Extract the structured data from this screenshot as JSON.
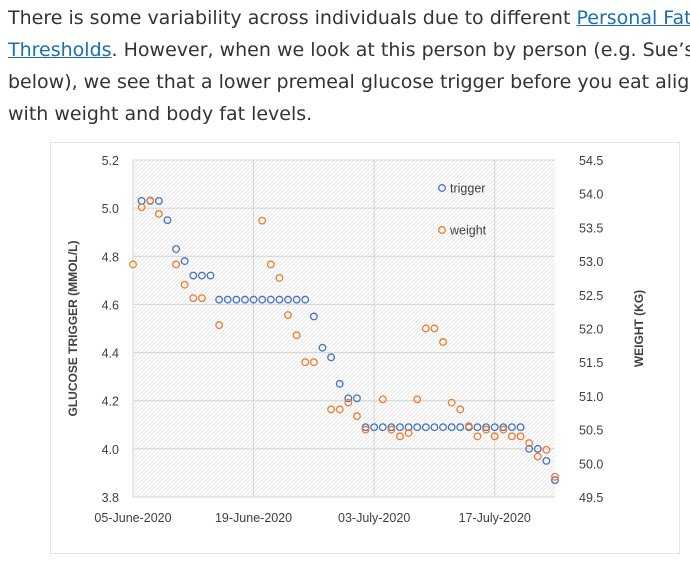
{
  "article": {
    "line1_pre": "There is some variability across individuals due to different ",
    "link_text": "Personal Fat",
    "line2_link": "Thresholds",
    "line2_post": ".  However, when we look at this person by person (e.g. Sue’s data",
    "line3": "below), we see that a lower premeal glucose trigger before you eat aligns nicely",
    "line4": "with weight and body fat levels."
  },
  "colors": {
    "trigger": "#4472c4",
    "weight": "#ed7d31",
    "text": "#333333",
    "link": "#1a6fb0"
  },
  "chart_data": {
    "type": "scatter",
    "title": "",
    "xlabel": "",
    "ylabel": "GLUCOSE TRIGGER (MMOL/L)",
    "y2label": "WEIGHT (KG)",
    "ylim": [
      3.8,
      5.2
    ],
    "y2lim": [
      49.5,
      54.5
    ],
    "yticks": [
      "5.2",
      "5.0",
      "4.8",
      "4.6",
      "4.4",
      "4.2",
      "4.0",
      "3.8"
    ],
    "y2ticks": [
      "54.5",
      "54.0",
      "53.5",
      "53.0",
      "52.5",
      "52.0",
      "51.5",
      "51.0",
      "50.5",
      "50.0",
      "49.5"
    ],
    "xlim": [
      "2020-06-05",
      "2020-07-24"
    ],
    "xticks": [
      "05-June-2020",
      "19-June-2020",
      "03-July-2020",
      "17-July-2020"
    ],
    "legend_position": "top-right",
    "grid": true,
    "series": [
      {
        "name": "trigger",
        "axis": "left",
        "points": [
          [
            "2020-06-06",
            5.03
          ],
          [
            "2020-06-07",
            5.03
          ],
          [
            "2020-06-08",
            5.03
          ],
          [
            "2020-06-09",
            4.95
          ],
          [
            "2020-06-10",
            4.83
          ],
          [
            "2020-06-11",
            4.78
          ],
          [
            "2020-06-12",
            4.72
          ],
          [
            "2020-06-13",
            4.72
          ],
          [
            "2020-06-14",
            4.72
          ],
          [
            "2020-06-15",
            4.62
          ],
          [
            "2020-06-16",
            4.62
          ],
          [
            "2020-06-17",
            4.62
          ],
          [
            "2020-06-18",
            4.62
          ],
          [
            "2020-06-19",
            4.62
          ],
          [
            "2020-06-20",
            4.62
          ],
          [
            "2020-06-21",
            4.62
          ],
          [
            "2020-06-22",
            4.62
          ],
          [
            "2020-06-23",
            4.62
          ],
          [
            "2020-06-24",
            4.62
          ],
          [
            "2020-06-25",
            4.62
          ],
          [
            "2020-06-26",
            4.55
          ],
          [
            "2020-06-27",
            4.42
          ],
          [
            "2020-06-28",
            4.38
          ],
          [
            "2020-06-29",
            4.27
          ],
          [
            "2020-06-30",
            4.21
          ],
          [
            "2020-07-01",
            4.21
          ],
          [
            "2020-07-02",
            4.09
          ],
          [
            "2020-07-03",
            4.09
          ],
          [
            "2020-07-04",
            4.09
          ],
          [
            "2020-07-05",
            4.09
          ],
          [
            "2020-07-06",
            4.09
          ],
          [
            "2020-07-07",
            4.09
          ],
          [
            "2020-07-08",
            4.09
          ],
          [
            "2020-07-09",
            4.09
          ],
          [
            "2020-07-10",
            4.09
          ],
          [
            "2020-07-11",
            4.09
          ],
          [
            "2020-07-12",
            4.09
          ],
          [
            "2020-07-13",
            4.09
          ],
          [
            "2020-07-14",
            4.09
          ],
          [
            "2020-07-15",
            4.09
          ],
          [
            "2020-07-16",
            4.09
          ],
          [
            "2020-07-17",
            4.09
          ],
          [
            "2020-07-18",
            4.09
          ],
          [
            "2020-07-19",
            4.09
          ],
          [
            "2020-07-20",
            4.09
          ],
          [
            "2020-07-21",
            4.0
          ],
          [
            "2020-07-22",
            4.0
          ],
          [
            "2020-07-23",
            3.95
          ],
          [
            "2020-07-24",
            3.87
          ]
        ]
      },
      {
        "name": "weight",
        "axis": "right",
        "points": [
          [
            "2020-06-05",
            52.95
          ],
          [
            "2020-06-06",
            53.8
          ],
          [
            "2020-06-07",
            53.9
          ],
          [
            "2020-06-08",
            53.7
          ],
          [
            "2020-06-10",
            52.95
          ],
          [
            "2020-06-11",
            52.65
          ],
          [
            "2020-06-12",
            52.45
          ],
          [
            "2020-06-13",
            52.45
          ],
          [
            "2020-06-15",
            52.05
          ],
          [
            "2020-06-20",
            53.6
          ],
          [
            "2020-06-21",
            52.95
          ],
          [
            "2020-06-22",
            52.75
          ],
          [
            "2020-06-23",
            52.2
          ],
          [
            "2020-06-24",
            51.9
          ],
          [
            "2020-06-25",
            51.5
          ],
          [
            "2020-06-26",
            51.5
          ],
          [
            "2020-06-28",
            50.8
          ],
          [
            "2020-06-29",
            50.8
          ],
          [
            "2020-06-30",
            50.9
          ],
          [
            "2020-07-01",
            50.7
          ],
          [
            "2020-07-02",
            50.5
          ],
          [
            "2020-07-04",
            50.95
          ],
          [
            "2020-07-05",
            50.5
          ],
          [
            "2020-07-06",
            50.4
          ],
          [
            "2020-07-07",
            50.45
          ],
          [
            "2020-07-08",
            50.95
          ],
          [
            "2020-07-09",
            52.0
          ],
          [
            "2020-07-10",
            52.0
          ],
          [
            "2020-07-11",
            51.8
          ],
          [
            "2020-07-12",
            50.9
          ],
          [
            "2020-07-13",
            50.8
          ],
          [
            "2020-07-14",
            50.55
          ],
          [
            "2020-07-15",
            50.4
          ],
          [
            "2020-07-16",
            50.5
          ],
          [
            "2020-07-17",
            50.4
          ],
          [
            "2020-07-18",
            50.5
          ],
          [
            "2020-07-19",
            50.4
          ],
          [
            "2020-07-20",
            50.4
          ],
          [
            "2020-07-21",
            50.3
          ],
          [
            "2020-07-22",
            50.1
          ],
          [
            "2020-07-23",
            50.2
          ],
          [
            "2020-07-24",
            49.8
          ]
        ]
      }
    ]
  }
}
